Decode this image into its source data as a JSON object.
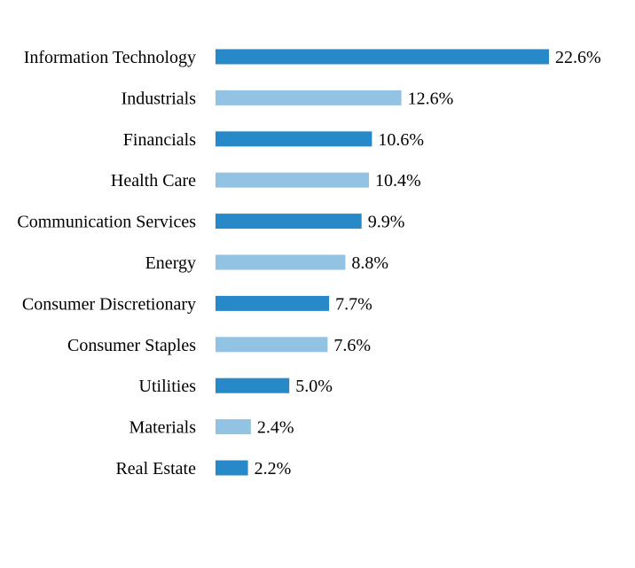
{
  "chart_data": {
    "type": "bar",
    "orientation": "horizontal",
    "categories": [
      "Information Technology",
      "Industrials",
      "Financials",
      "Health Care",
      "Communication Services",
      "Energy",
      "Consumer Discretionary",
      "Consumer Staples",
      "Utilities",
      "Materials",
      "Real Estate"
    ],
    "values": [
      22.6,
      12.6,
      10.6,
      10.4,
      9.9,
      8.8,
      7.7,
      7.6,
      5.0,
      2.4,
      2.2
    ],
    "value_labels": [
      "22.6%",
      "12.6%",
      "10.6%",
      "10.4%",
      "9.9%",
      "8.8%",
      "7.7%",
      "7.6%",
      "5.0%",
      "2.4%",
      "2.2%"
    ],
    "title": "",
    "xlabel": "",
    "ylabel": "",
    "xlim": [
      0,
      22.6
    ],
    "grid": false,
    "legend": "none",
    "colors": {
      "primary": "#2889C9",
      "secondary": "#93C3E2"
    }
  }
}
